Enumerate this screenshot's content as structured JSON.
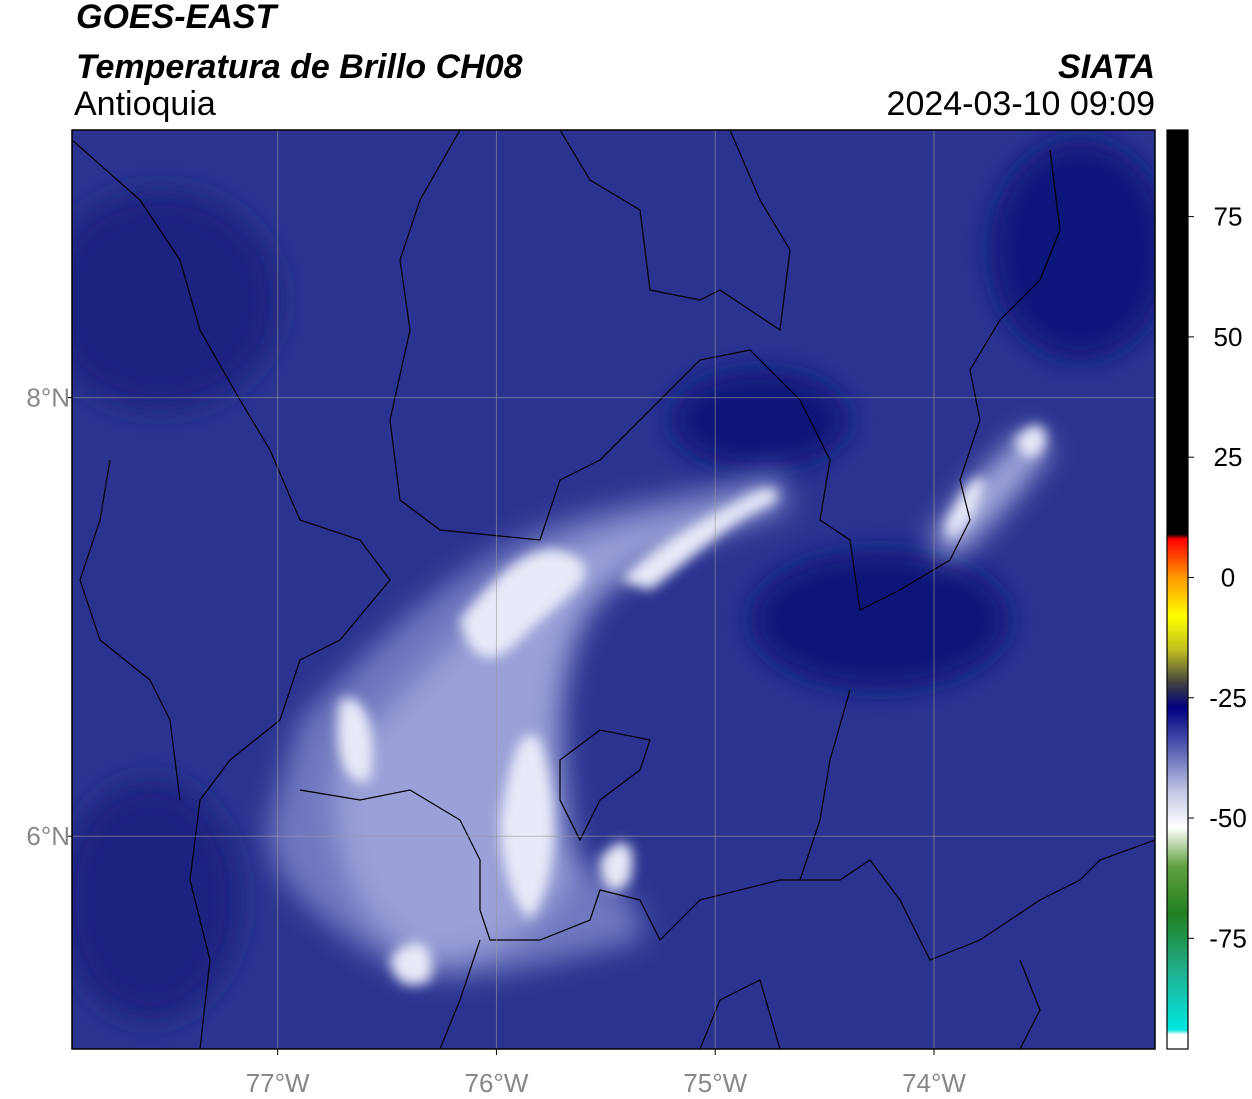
{
  "header": {
    "title": "GOES-EAST",
    "subtitle": "Temperatura de Brillo CH08",
    "region": "Antioquia",
    "source": "SIATA",
    "timestamp": "2024-03-10 09:09"
  },
  "map": {
    "xlim": [
      -77.94,
      -72.99
    ],
    "ylim": [
      5.03,
      9.22
    ],
    "xticks": [
      {
        "value": -77,
        "label": "77°W"
      },
      {
        "value": -76,
        "label": "76°W"
      },
      {
        "value": -75,
        "label": "75°W"
      },
      {
        "value": -74,
        "label": "74°W"
      }
    ],
    "yticks": [
      {
        "value": 8,
        "label": "8°N"
      },
      {
        "value": 6,
        "label": "6°N"
      }
    ],
    "grid": true
  },
  "colorbar": {
    "lim": [
      -98,
      93
    ],
    "ticks": [
      75,
      50,
      25,
      0,
      -25,
      -50,
      -75
    ],
    "stops": [
      {
        "value": -98,
        "color": "#ffffff"
      },
      {
        "value": -95,
        "color": "#ffffff"
      },
      {
        "value": -94,
        "color": "#00e8e0"
      },
      {
        "value": -82,
        "color": "#20b090"
      },
      {
        "value": -70,
        "color": "#208020"
      },
      {
        "value": -60,
        "color": "#60a040"
      },
      {
        "value": -52,
        "color": "#ffffff"
      },
      {
        "value": -45,
        "color": "#c8cce8"
      },
      {
        "value": -35,
        "color": "#5058b0"
      },
      {
        "value": -27,
        "color": "#000080"
      },
      {
        "value": -22,
        "color": "#404040"
      },
      {
        "value": -15,
        "color": "#c0c020"
      },
      {
        "value": -8,
        "color": "#ffff00"
      },
      {
        "value": 0,
        "color": "#ff9900"
      },
      {
        "value": 8,
        "color": "#ff0000"
      },
      {
        "value": 9,
        "color": "#000000"
      },
      {
        "value": 93,
        "color": "#000000"
      }
    ]
  }
}
